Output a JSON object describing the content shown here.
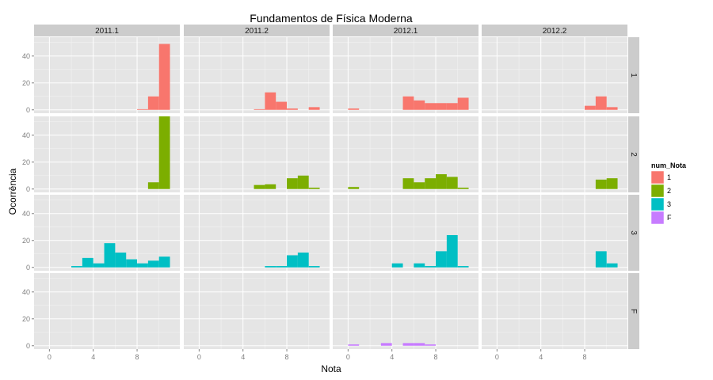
{
  "chart_data": {
    "type": "bar",
    "title": "Fundamentos de Física Moderna",
    "xlabel": "Nota",
    "ylabel": "Ocorrência",
    "xlim": [
      -1.4,
      11.9
    ],
    "ylim": [
      -2.5,
      54
    ],
    "x_ticks": [
      0,
      4,
      8
    ],
    "y_ticks": [
      0,
      20,
      40
    ],
    "bin_width": 1,
    "col_facets": [
      "2011.1",
      "2011.2",
      "2012.1",
      "2012.2"
    ],
    "row_facets": [
      "1",
      "2",
      "3",
      "F"
    ],
    "legend": {
      "title": "num_Nota",
      "position": "right",
      "items": [
        {
          "label": "1",
          "color": "#F8766D"
        },
        {
          "label": "2",
          "color": "#7CAE00"
        },
        {
          "label": "3",
          "color": "#00BFC4"
        },
        {
          "label": "F",
          "color": "#C77CFF"
        }
      ]
    },
    "panels": [
      {
        "row": "1",
        "col": "2011.1",
        "color": "#F8766D",
        "bins": [
          [
            8,
            0.5
          ],
          [
            9,
            10
          ],
          [
            10,
            49
          ]
        ]
      },
      {
        "row": "1",
        "col": "2011.2",
        "color": "#F8766D",
        "bins": [
          [
            5,
            0.5
          ],
          [
            6,
            13
          ],
          [
            7,
            6
          ],
          [
            8,
            1
          ],
          [
            10,
            2
          ]
        ]
      },
      {
        "row": "1",
        "col": "2012.1",
        "color": "#F8766D",
        "bins": [
          [
            0,
            1
          ],
          [
            5,
            10
          ],
          [
            6,
            7
          ],
          [
            7,
            5
          ],
          [
            8,
            5
          ],
          [
            9,
            5
          ],
          [
            10,
            9
          ]
        ]
      },
      {
        "row": "1",
        "col": "2012.2",
        "color": "#F8766D",
        "bins": [
          [
            8,
            3
          ],
          [
            9,
            10
          ],
          [
            10,
            2
          ]
        ]
      },
      {
        "row": "2",
        "col": "2011.1",
        "color": "#7CAE00",
        "bins": [
          [
            9,
            5
          ],
          [
            10,
            54
          ]
        ]
      },
      {
        "row": "2",
        "col": "2011.2",
        "color": "#7CAE00",
        "bins": [
          [
            5,
            3
          ],
          [
            6,
            3.5
          ],
          [
            8,
            8
          ],
          [
            9,
            10
          ],
          [
            10,
            1
          ]
        ]
      },
      {
        "row": "2",
        "col": "2012.1",
        "color": "#7CAE00",
        "bins": [
          [
            0,
            1.5
          ],
          [
            5,
            8
          ],
          [
            6,
            5
          ],
          [
            7,
            8
          ],
          [
            8,
            11
          ],
          [
            9,
            9
          ],
          [
            10,
            1
          ]
        ]
      },
      {
        "row": "2",
        "col": "2012.2",
        "color": "#7CAE00",
        "bins": [
          [
            9,
            7
          ],
          [
            10,
            8
          ]
        ]
      },
      {
        "row": "3",
        "col": "2011.1",
        "color": "#00BFC4",
        "bins": [
          [
            2,
            1
          ],
          [
            3,
            7
          ],
          [
            4,
            3
          ],
          [
            5,
            18
          ],
          [
            6,
            11
          ],
          [
            7,
            6
          ],
          [
            8,
            3
          ],
          [
            9,
            5
          ],
          [
            10,
            8
          ]
        ]
      },
      {
        "row": "3",
        "col": "2011.2",
        "color": "#00BFC4",
        "bins": [
          [
            6,
            1
          ],
          [
            7,
            1
          ],
          [
            8,
            9
          ],
          [
            9,
            11
          ],
          [
            10,
            1
          ]
        ]
      },
      {
        "row": "3",
        "col": "2012.1",
        "color": "#00BFC4",
        "bins": [
          [
            4,
            3
          ],
          [
            6,
            3
          ],
          [
            7,
            1
          ],
          [
            8,
            12
          ],
          [
            9,
            24
          ],
          [
            10,
            1
          ]
        ]
      },
      {
        "row": "3",
        "col": "2012.2",
        "color": "#00BFC4",
        "bins": [
          [
            9,
            12
          ],
          [
            10,
            3
          ]
        ]
      },
      {
        "row": "F",
        "col": "2011.1",
        "color": "#C77CFF",
        "bins": []
      },
      {
        "row": "F",
        "col": "2011.2",
        "color": "#C77CFF",
        "bins": []
      },
      {
        "row": "F",
        "col": "2012.1",
        "color": "#C77CFF",
        "bins": [
          [
            0,
            1
          ],
          [
            3,
            2
          ],
          [
            5,
            2
          ],
          [
            6,
            2
          ],
          [
            7,
            1
          ]
        ]
      },
      {
        "row": "F",
        "col": "2012.2",
        "color": "#C77CFF",
        "bins": []
      }
    ]
  }
}
